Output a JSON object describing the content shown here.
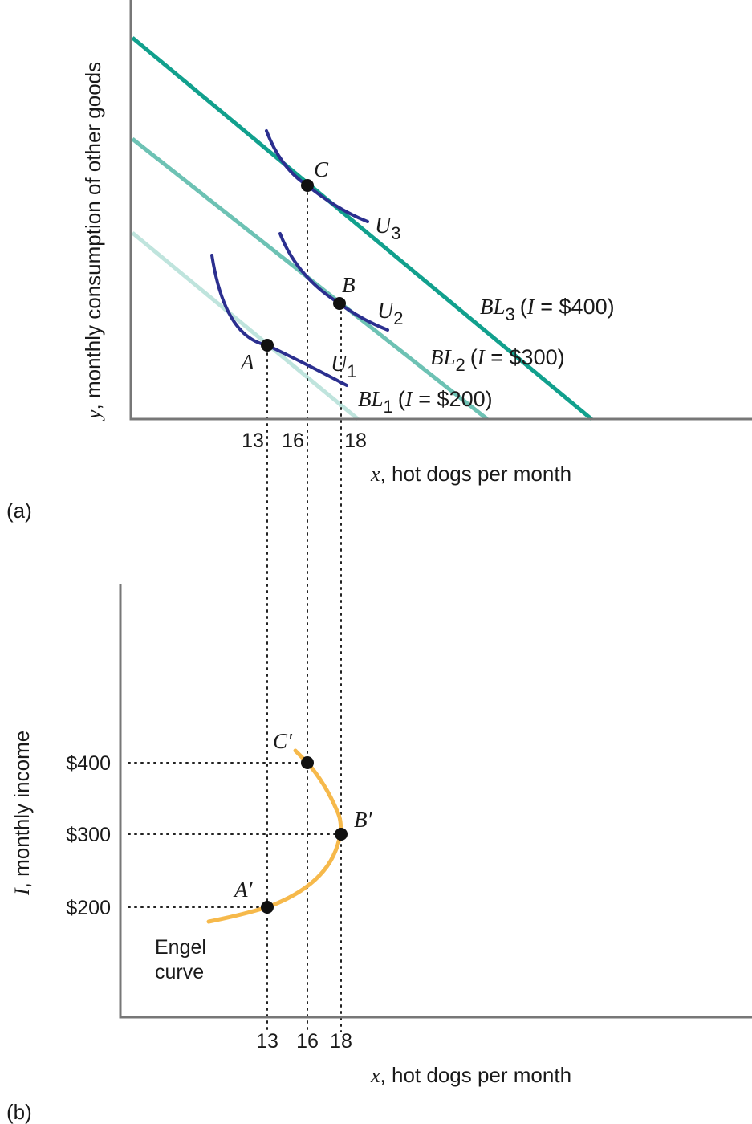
{
  "panel_a": {
    "label": "(a)",
    "ylabel_var": "y",
    "ylabel_rest": ", monthly consumption of other goods",
    "xlabel_var": "x",
    "xlabel_rest": ", hot dogs per month",
    "x_ticks": [
      "13",
      "16",
      "18"
    ],
    "points": [
      {
        "name": "A",
        "x": 13,
        "curve": "U",
        "sub": "1"
      },
      {
        "name": "B",
        "x": 18,
        "curve": "U",
        "sub": "2"
      },
      {
        "name": "C",
        "x": 16,
        "curve": "U",
        "sub": "3"
      }
    ],
    "budget_lines": [
      {
        "prefix": "BL",
        "sub": "1",
        "open": "(",
        "var": "I",
        "eq": " = $200)",
        "color": "#bfe4dd"
      },
      {
        "prefix": "BL",
        "sub": "2",
        "open": "(",
        "var": "I",
        "eq": " = $300)",
        "color": "#6dc2b4"
      },
      {
        "prefix": "BL",
        "sub": "3",
        "open": "(",
        "var": "I",
        "eq": " = $400)",
        "color": "#11a08d"
      }
    ],
    "indifference_color": "#2b2f8f"
  },
  "panel_b": {
    "label": "(b)",
    "ylabel_var": "I",
    "ylabel_rest": ", monthly income",
    "xlabel_var": "x",
    "xlabel_rest": ", hot dogs per month",
    "x_ticks": [
      "13",
      "16",
      "18"
    ],
    "y_ticks": [
      "$400",
      "$300",
      "$200"
    ],
    "curve_label_line1": "Engel",
    "curve_label_line2": "curve",
    "curve_color": "#f6b94b",
    "points": [
      {
        "name": "A′",
        "x": 13,
        "income": 200
      },
      {
        "name": "B′",
        "x": 18,
        "income": 300
      },
      {
        "name": "C′",
        "x": 16,
        "income": 400
      }
    ]
  },
  "chart_data": [
    {
      "type": "line",
      "panel": "(a)",
      "xlabel": "x, hot dogs per month",
      "ylabel": "y, monthly consumption of other goods",
      "x_ticks": [
        13,
        16,
        18
      ],
      "series": [
        {
          "name": "BL1 (I = $200)"
        },
        {
          "name": "BL2 (I = $300)"
        },
        {
          "name": "BL3 (I = $400)"
        },
        {
          "name": "U1"
        },
        {
          "name": "U2"
        },
        {
          "name": "U3"
        }
      ],
      "points": [
        {
          "label": "A",
          "x": 13
        },
        {
          "label": "B",
          "x": 18
        },
        {
          "label": "C",
          "x": 16
        }
      ]
    },
    {
      "type": "line",
      "panel": "(b)",
      "xlabel": "x, hot dogs per month",
      "ylabel": "I, monthly income",
      "x_ticks": [
        13,
        16,
        18
      ],
      "y_ticks": [
        "$200",
        "$300",
        "$400"
      ],
      "series": [
        {
          "name": "Engel curve",
          "points": [
            {
              "x": 13,
              "y": 200
            },
            {
              "x": 18,
              "y": 300
            },
            {
              "x": 16,
              "y": 400
            }
          ]
        }
      ]
    }
  ]
}
